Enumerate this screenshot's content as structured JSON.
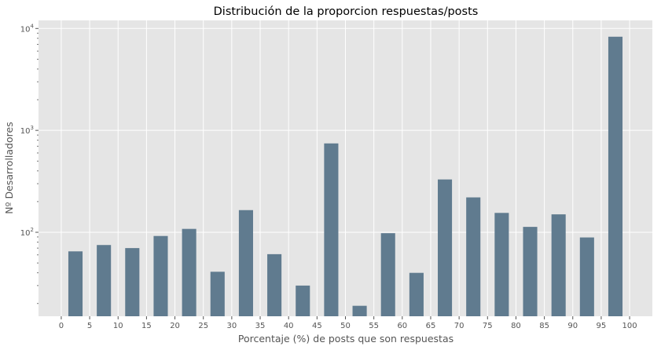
{
  "chart_data": {
    "type": "bar",
    "title": "Distribución de la proporcion respuestas/posts",
    "xlabel": "Porcentaje (%) de posts que son respuestas",
    "ylabel": "Nº Desarrolladores",
    "yscale": "log",
    "ylim": [
      15,
      12000
    ],
    "xlim": [
      -4,
      104
    ],
    "grid": true,
    "bar_color": "#607b8f",
    "background_color": "#e5e5e5",
    "grid_color": "#ffffff",
    "x_ticks": [
      0,
      5,
      10,
      15,
      20,
      25,
      30,
      35,
      40,
      45,
      50,
      55,
      60,
      65,
      70,
      75,
      80,
      85,
      90,
      95,
      100
    ],
    "y_ticks": [
      {
        "value": 100,
        "base": "10",
        "exp": "2"
      },
      {
        "value": 1000,
        "base": "10",
        "exp": "3"
      },
      {
        "value": 10000,
        "base": "10",
        "exp": "4"
      }
    ],
    "bin_width": 2.5,
    "bins": [
      {
        "x": 2.5,
        "value": 65
      },
      {
        "x": 7.5,
        "value": 75
      },
      {
        "x": 12.5,
        "value": 70
      },
      {
        "x": 17.5,
        "value": 92
      },
      {
        "x": 22.5,
        "value": 108
      },
      {
        "x": 27.5,
        "value": 41
      },
      {
        "x": 32.5,
        "value": 165
      },
      {
        "x": 37.5,
        "value": 61
      },
      {
        "x": 42.5,
        "value": 30
      },
      {
        "x": 47.5,
        "value": 745
      },
      {
        "x": 52.5,
        "value": 19
      },
      {
        "x": 57.5,
        "value": 98
      },
      {
        "x": 62.5,
        "value": 40
      },
      {
        "x": 67.5,
        "value": 330
      },
      {
        "x": 72.5,
        "value": 220
      },
      {
        "x": 77.5,
        "value": 155
      },
      {
        "x": 82.5,
        "value": 113
      },
      {
        "x": 87.5,
        "value": 150
      },
      {
        "x": 92.5,
        "value": 89
      },
      {
        "x": 97.5,
        "value": 8300
      }
    ]
  }
}
